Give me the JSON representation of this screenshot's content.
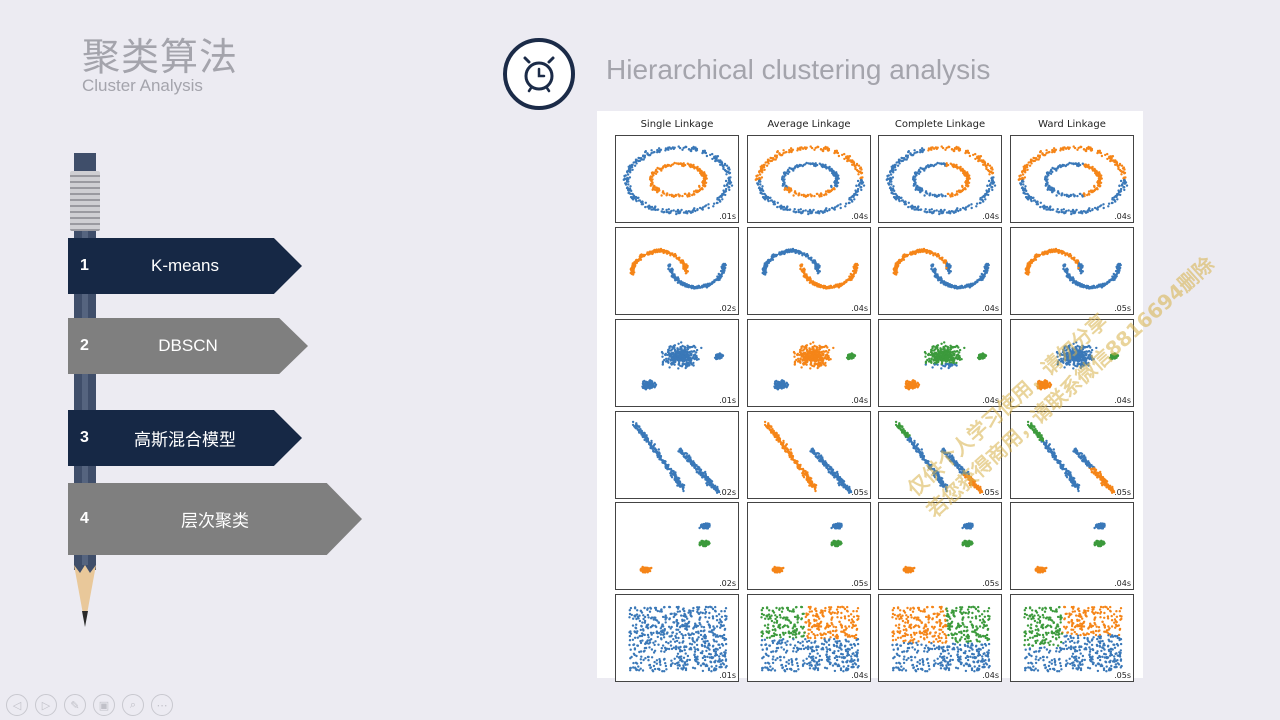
{
  "header": {
    "title_cn": "聚类算法",
    "title_en": "Cluster Analysis",
    "heading": "Hierarchical clustering analysis",
    "icon": "alarm-clock-icon"
  },
  "menu": [
    {
      "num": "1",
      "label": "K-means",
      "style": "dark"
    },
    {
      "num": "2",
      "label": "DBSCN",
      "style": "gray"
    },
    {
      "num": "3",
      "label": "高斯混合模型",
      "style": "dark"
    },
    {
      "num": "4",
      "label": "层次聚类",
      "style": "gray"
    }
  ],
  "figure": {
    "columns": [
      "Single Linkage",
      "Average Linkage",
      "Complete Linkage",
      "Ward Linkage"
    ],
    "times": [
      [
        ".01s",
        ".04s",
        ".04s",
        ".04s"
      ],
      [
        ".02s",
        ".04s",
        ".04s",
        ".05s"
      ],
      [
        ".01s",
        ".04s",
        ".04s",
        ".04s"
      ],
      [
        ".02s",
        ".05s",
        ".05s",
        ".05s"
      ],
      [
        ".02s",
        ".05s",
        ".05s",
        ".04s"
      ],
      [
        ".01s",
        ".04s",
        ".04s",
        ".05s"
      ]
    ],
    "colors": {
      "blue": "#3a78b8",
      "orange": "#f58518",
      "green": "#3c9a3c"
    }
  },
  "watermark": [
    "仅供个人学习使用，请勿分享",
    "若您获得商用，请联系微信8816694删除"
  ],
  "toolbar": [
    "◁",
    "▷",
    "✎",
    "▣",
    "⌕",
    "⋯"
  ]
}
